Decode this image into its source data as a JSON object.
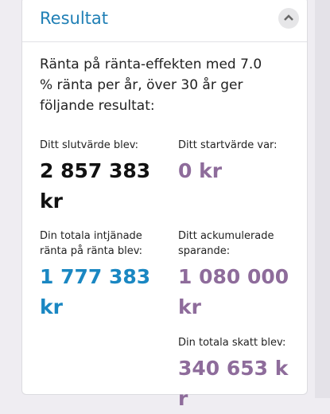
{
  "header": {
    "title": "Resultat"
  },
  "intro": "Ränta på ränta-effekten med 7.0 % ränta per år, över 30 år ger följande resultat:",
  "items": [
    {
      "label": "Ditt slutvärde blev:",
      "value": "2 857 383 kr"
    },
    {
      "label": "Ditt startvärde var:",
      "value": "0 kr"
    },
    {
      "label": "Din totala intjänade ränta på ränta blev:",
      "value": "1 777 383 kr"
    },
    {
      "label": "Ditt ackumulerade sparande:",
      "value": "1 080 000 kr"
    },
    {
      "label": "Din totala skatt blev:",
      "value": "340 653 kr"
    }
  ]
}
